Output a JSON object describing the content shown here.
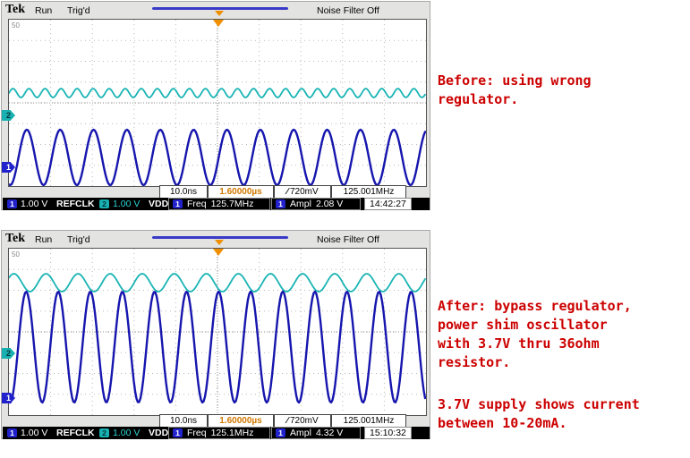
{
  "annotations": {
    "before": "Before: using wrong\nregulator.",
    "after": "After: bypass regulator,\npower shim oscillator\nwith 3.7V thru 36ohm\nresistor.",
    "after_note": "3.7V supply shows current\nbetween 10-20mA."
  },
  "scopes": [
    {
      "brand": "Tek",
      "acq_status": "Run",
      "trig_status": "Trig'd",
      "noise_filter": "Noise Filter Off",
      "corner_label": "50",
      "ch1_num": "1",
      "ch2_num": "2",
      "timebase": "10.0ns",
      "delay": "1.60000µs",
      "trig_slope": "∕",
      "trig_level": "720mV",
      "trig_freq": "125.001MHz",
      "ch1_scale": "1.00 V",
      "ch1_label": "REFCLK",
      "ch2_scale": "1.00 V",
      "ch2_label": "VDD",
      "meas1_ch": "1",
      "meas1_name": "Freq",
      "meas1_value": "125.7MHz",
      "meas2_ch": "1",
      "meas2_name": "Ampl",
      "meas2_value": "2.08 V",
      "clock": "14:42:27",
      "colors": {
        "ch1": "#1616ae",
        "ch2": "#1ab4b4",
        "trigger": "#f09000"
      },
      "waveform": {
        "traces": [
          {
            "name": "ch2-vdd-trace",
            "color": "#1ab4b4",
            "cycles": 26,
            "amp": 5,
            "mid": 82,
            "width": 1.8,
            "phase": 0
          },
          {
            "name": "ch1-refclk-trace",
            "color": "#1616ae",
            "cycles": 12.5,
            "amp": 31,
            "mid": 154,
            "width": 2.4,
            "phase": -1.8
          }
        ]
      }
    },
    {
      "brand": "Tek",
      "acq_status": "Run",
      "trig_status": "Trig'd",
      "noise_filter": "Noise Filter Off",
      "corner_label": "50",
      "ch1_num": "1",
      "ch2_num": "2",
      "timebase": "10.0ns",
      "delay": "1.60000µs",
      "trig_slope": "∕",
      "trig_level": "720mV",
      "trig_freq": "125.001MHz",
      "ch1_scale": "1.00 V",
      "ch1_label": "REFCLK",
      "ch2_scale": "1.00 V",
      "ch2_label": "VDD",
      "meas1_ch": "1",
      "meas1_name": "Freq",
      "meas1_value": "125.1MHz",
      "meas2_ch": "1",
      "meas2_name": "Ampl",
      "meas2_value": "4.32 V",
      "clock": "15:10:32",
      "colors": {
        "ch1": "#1616ae",
        "ch2": "#1ab4b4",
        "trigger": "#f09000"
      },
      "waveform": {
        "traces": [
          {
            "name": "ch2-vdd-trace",
            "color": "#1ab4b4",
            "cycles": 13,
            "amp": 10,
            "mid": 38,
            "width": 1.8,
            "phase": 0.6
          },
          {
            "name": "ch1-refclk-trace",
            "color": "#1616ae",
            "cycles": 13,
            "amp": 62,
            "mid": 110,
            "width": 2.4,
            "phase": -1.8
          }
        ]
      }
    }
  ]
}
